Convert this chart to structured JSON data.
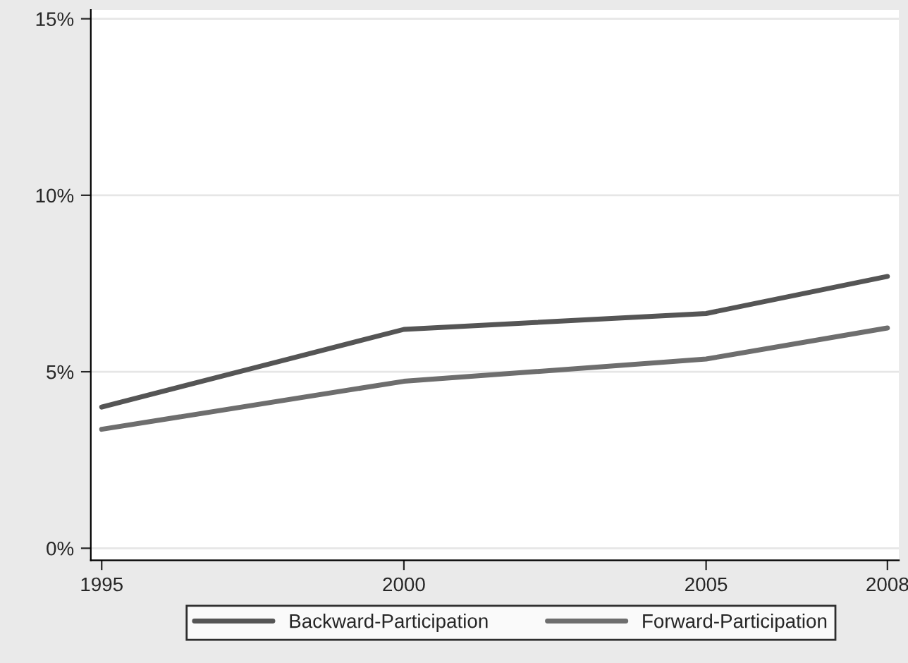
{
  "chart_data": {
    "type": "line",
    "x": [
      1995,
      2000,
      2005,
      2008
    ],
    "series": [
      {
        "name": "Backward-Participation",
        "color": "#555555",
        "values": [
          4.0,
          6.2,
          6.65,
          7.7
        ]
      },
      {
        "name": "Forward-Participation",
        "color": "#6e6e6e",
        "values": [
          3.37,
          4.73,
          5.36,
          6.24
        ]
      }
    ],
    "xlim": [
      1994.82,
      2008.19
    ],
    "xticks": [
      1995,
      2000,
      2005,
      2008
    ],
    "ylim": [
      -0.34,
      15.25
    ],
    "yticks": [
      {
        "value": 0,
        "label": "0%"
      },
      {
        "value": 5,
        "label": "5%"
      },
      {
        "value": 10,
        "label": "10%"
      },
      {
        "value": 15,
        "label": "15%"
      }
    ],
    "grid": "y",
    "legend": "bottom",
    "marker": "none",
    "line_style": "solid"
  }
}
